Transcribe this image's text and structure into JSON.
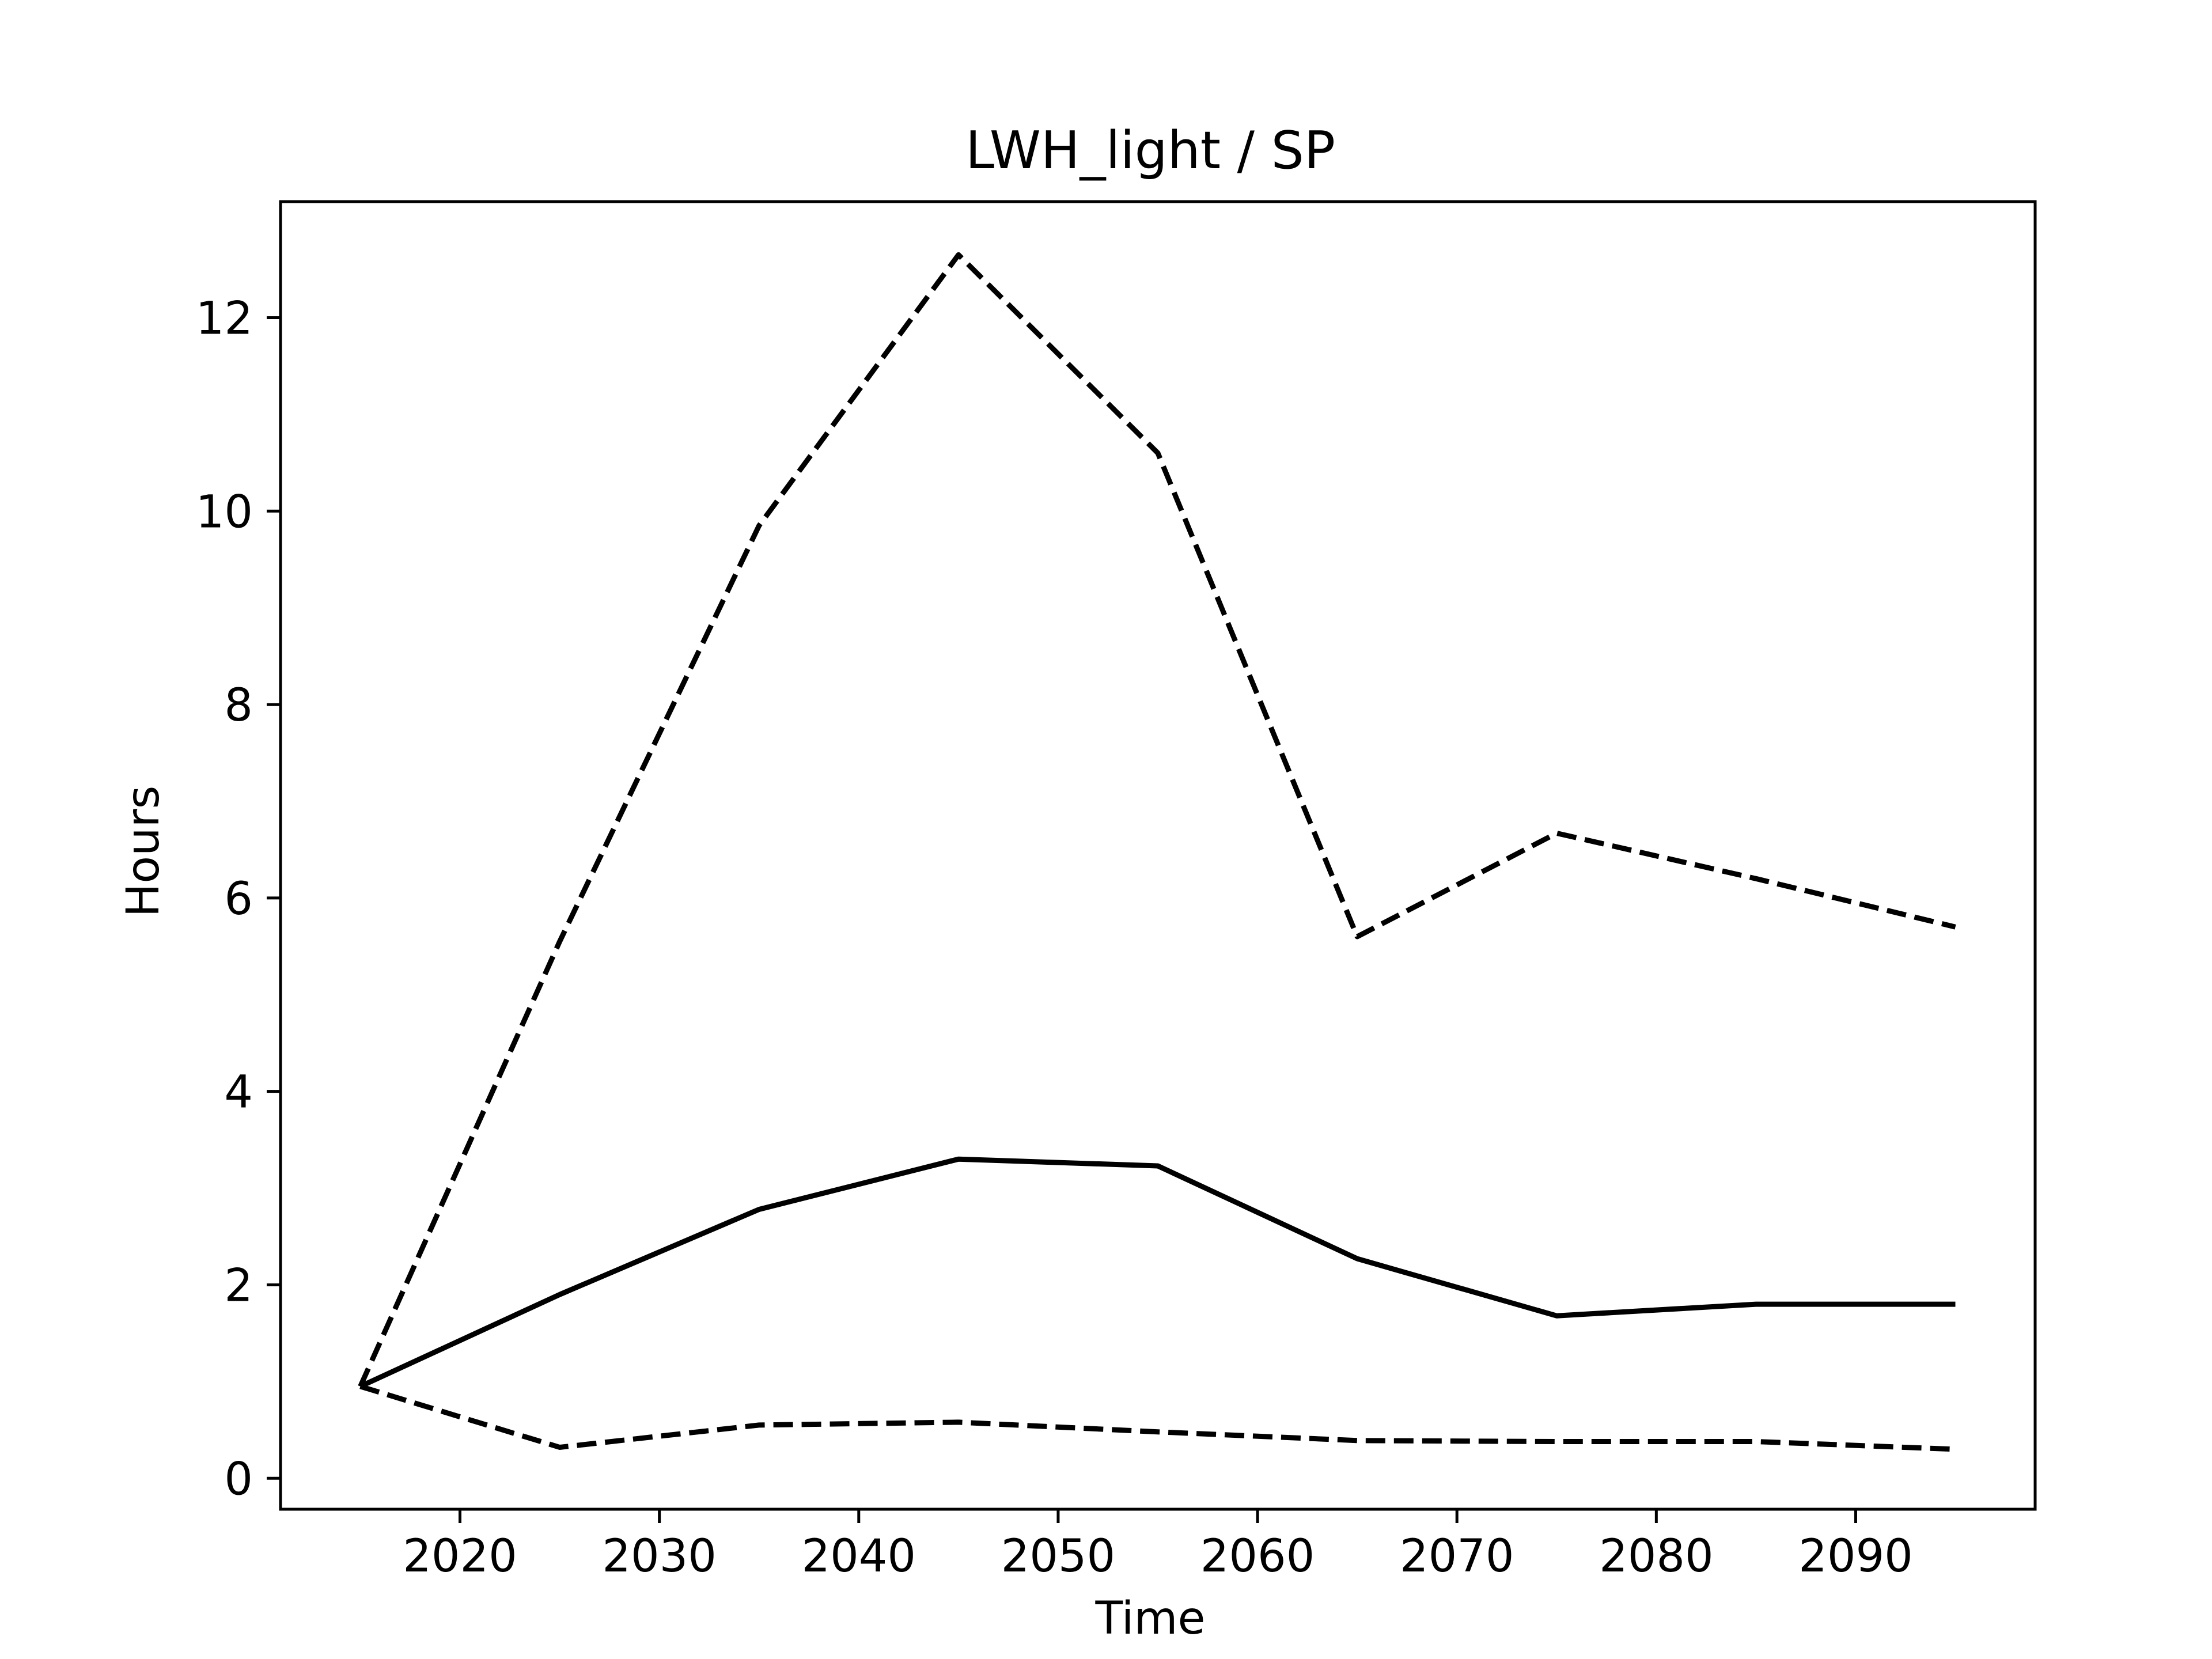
{
  "chart_data": {
    "type": "line",
    "title": "LWH_light / SP",
    "xlabel": "Time",
    "ylabel": "Hours",
    "xlim": [
      2011,
      2099
    ],
    "ylim": [
      -0.32,
      13.2
    ],
    "xticks": [
      2020,
      2030,
      2040,
      2050,
      2060,
      2070,
      2080,
      2090
    ],
    "yticks": [
      0,
      2,
      4,
      6,
      8,
      10,
      12
    ],
    "xtick_labels": [
      "2020",
      "2030",
      "2040",
      "2050",
      "2060",
      "2070",
      "2080",
      "2090"
    ],
    "ytick_labels": [
      "0",
      "2",
      "4",
      "6",
      "8",
      "10",
      "12"
    ],
    "grid": false,
    "legend": "none",
    "x": [
      2015,
      2025,
      2035,
      2045,
      2055,
      2065,
      2075,
      2085,
      2095
    ],
    "series": [
      {
        "style": "dashed",
        "color": "#000000",
        "values": [
          0.95,
          5.55,
          9.85,
          12.65,
          10.6,
          5.6,
          6.67,
          6.2,
          5.7
        ]
      },
      {
        "style": "solid",
        "color": "#000000",
        "values": [
          0.95,
          1.9,
          2.78,
          3.3,
          3.23,
          2.27,
          1.68,
          1.8,
          1.8
        ]
      },
      {
        "style": "dashed",
        "color": "#000000",
        "values": [
          0.95,
          0.32,
          0.55,
          0.58,
          0.48,
          0.39,
          0.38,
          0.38,
          0.3
        ]
      }
    ]
  }
}
